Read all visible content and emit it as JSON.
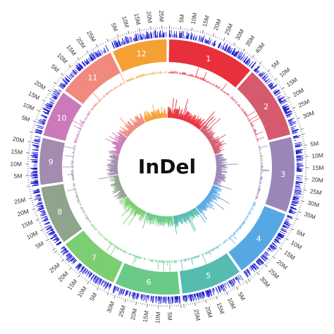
{
  "chart_data": {
    "type": "circos",
    "title": "InDel",
    "tick_suffix": "M",
    "tick_step_mb": 5,
    "density_color": "#1a1acc",
    "chromosomes": [
      {
        "name": "1",
        "length_mb": 43,
        "color": "#e8303c"
      },
      {
        "name": "2",
        "length_mb": 36,
        "color": "#d65a6e"
      },
      {
        "name": "3",
        "length_mb": 37,
        "color": "#9a87b8"
      },
      {
        "name": "4",
        "length_mb": 35,
        "color": "#56a8e4"
      },
      {
        "name": "5",
        "length_mb": 30,
        "color": "#56bcb0"
      },
      {
        "name": "6",
        "length_mb": 32,
        "color": "#6acb86"
      },
      {
        "name": "7",
        "length_mb": 30,
        "color": "#7cce72"
      },
      {
        "name": "8",
        "length_mb": 29,
        "color": "#8ea48c"
      },
      {
        "name": "9",
        "length_mb": 23,
        "color": "#a48cb0"
      },
      {
        "name": "10",
        "length_mb": 23,
        "color": "#cc79b9"
      },
      {
        "name": "11",
        "length_mb": 29,
        "color": "#f08a7e"
      },
      {
        "name": "12",
        "length_mb": 27,
        "color": "#f5a035"
      }
    ]
  }
}
